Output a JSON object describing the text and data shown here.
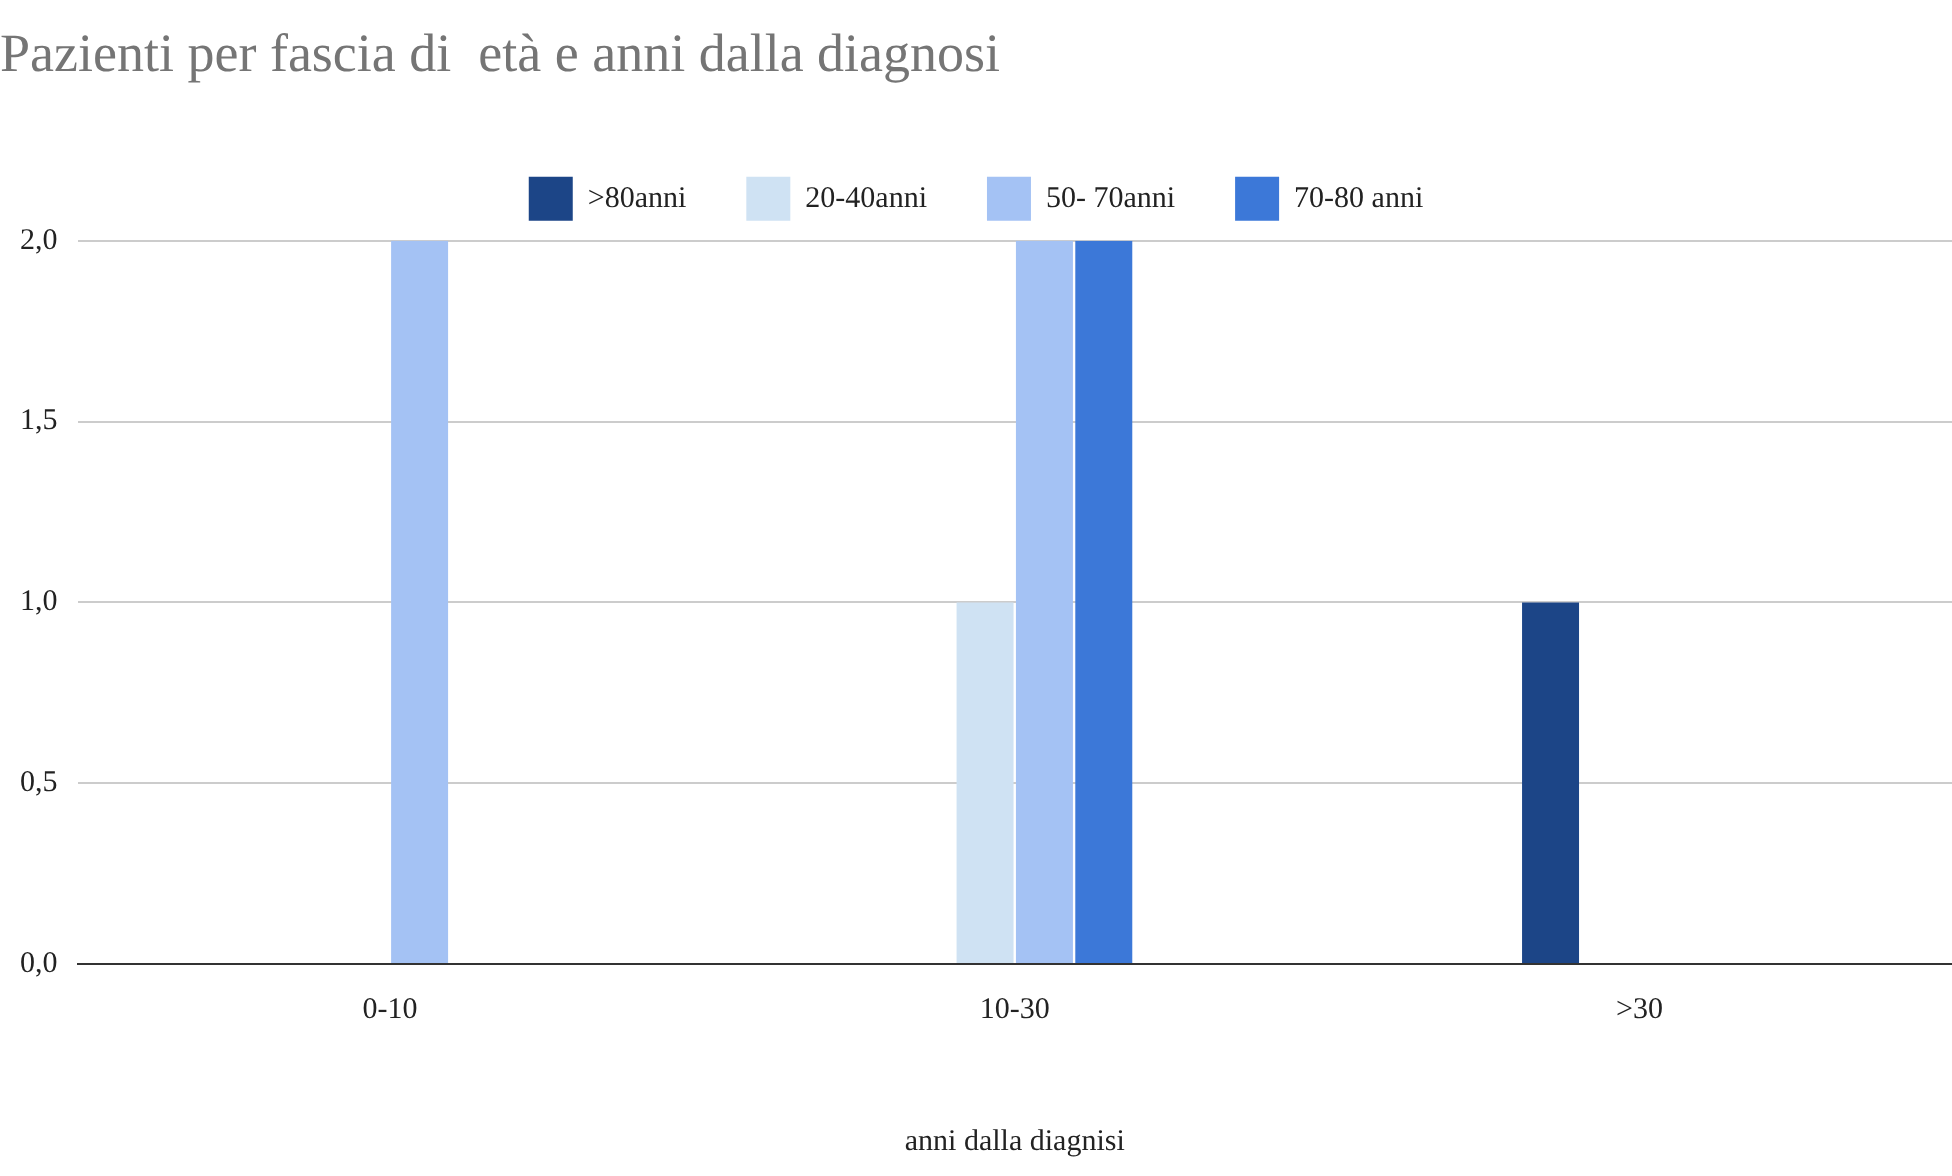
{
  "chart_data": {
    "type": "bar",
    "title": "Pazienti per fascia di  età e anni dalla diagnosi",
    "xlabel": "anni dalla diagnisi",
    "categories": [
      "0-10",
      "10-30",
      ">30"
    ],
    "series": [
      {
        "name": ">80anni",
        "color": "#1c4587",
        "values": [
          0,
          0,
          1
        ]
      },
      {
        "name": "20-40anni",
        "color": "#cfe2f3",
        "values": [
          0,
          1,
          0
        ]
      },
      {
        "name": "50- 70anni",
        "color": "#a4c2f4",
        "values": [
          2,
          2,
          0
        ]
      },
      {
        "name": "70-80 anni",
        "color": "#3c78d8",
        "values": [
          0,
          2,
          0
        ]
      }
    ],
    "ylim": [
      0,
      2
    ],
    "yticks": [
      {
        "value": 0,
        "label": "0,0"
      },
      {
        "value": 0.5,
        "label": "0,5"
      },
      {
        "value": 1,
        "label": "1,0"
      },
      {
        "value": 1.5,
        "label": "1,5"
      },
      {
        "value": 2,
        "label": "2,0"
      }
    ],
    "grid": "y",
    "legend": "top"
  }
}
